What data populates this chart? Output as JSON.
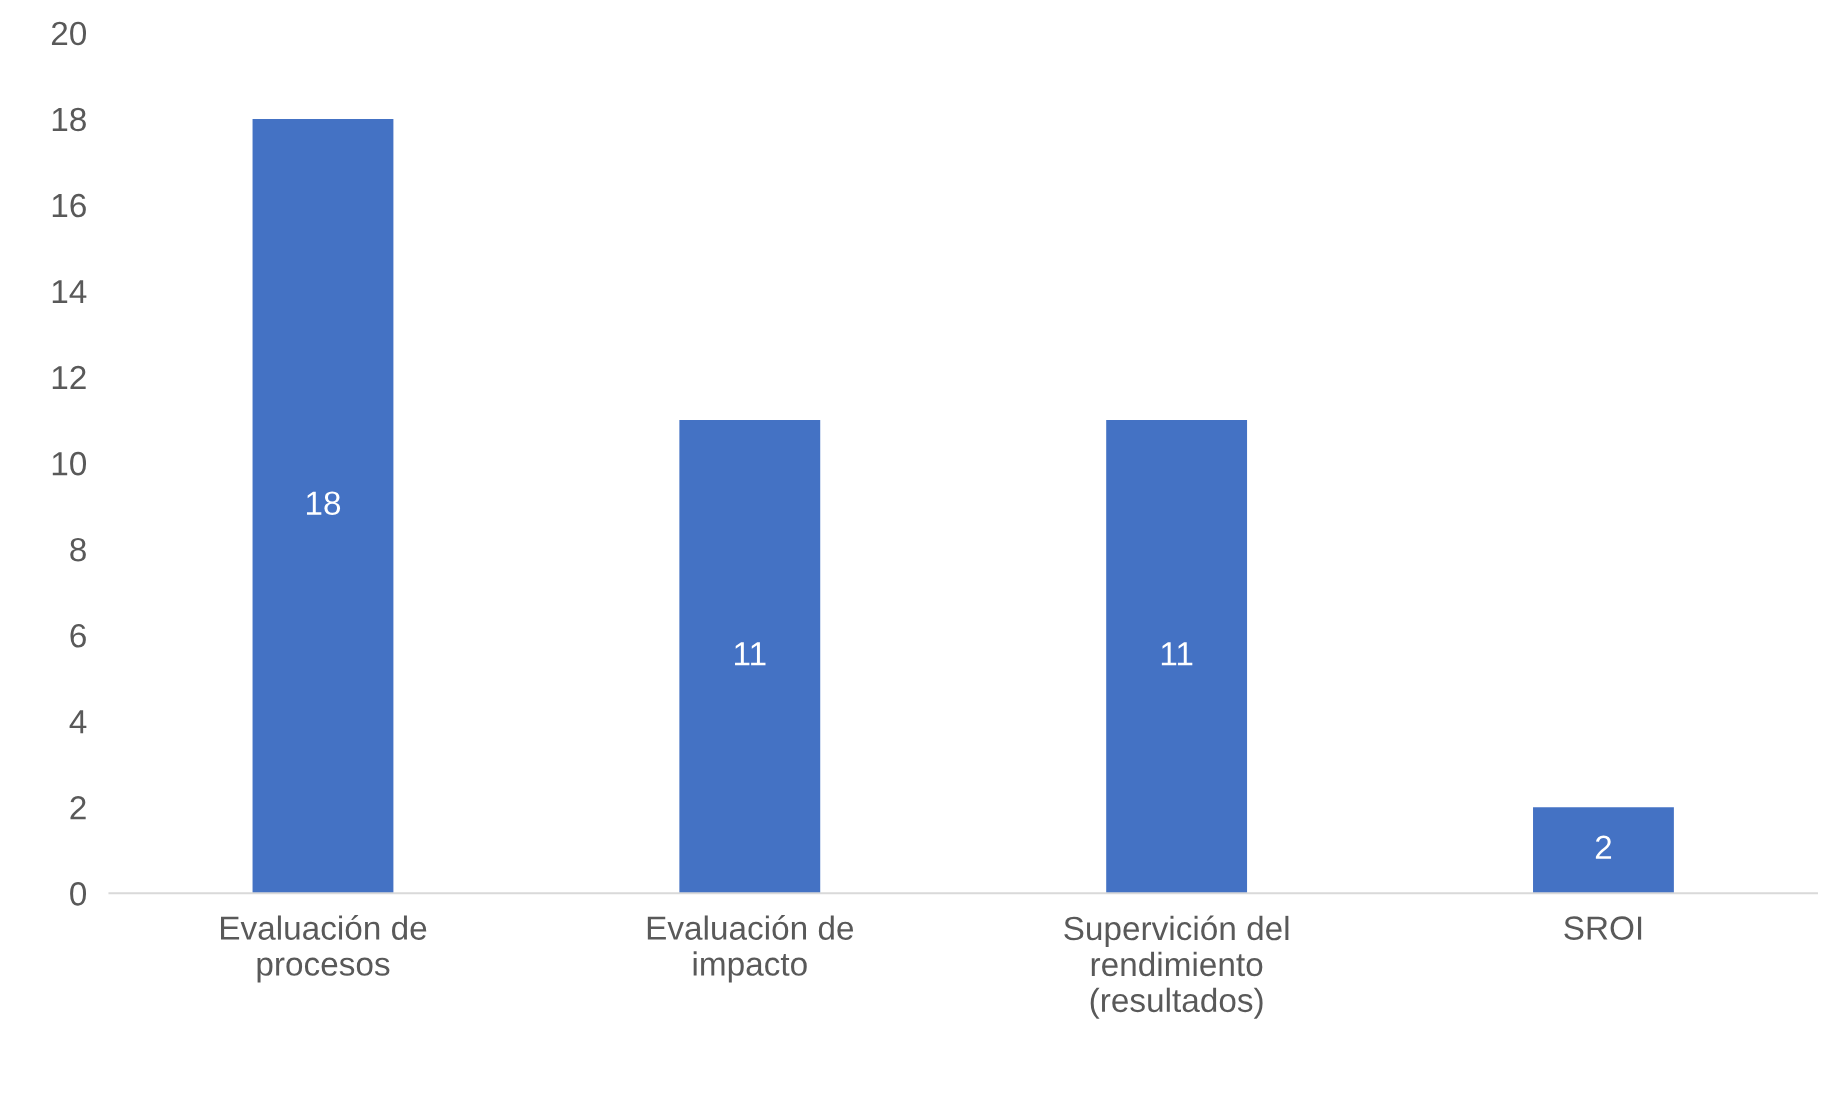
{
  "chart_data": {
    "type": "bar",
    "categories": [
      "Evaluación de\nprocesos",
      "Evaluación de\nimpacto",
      "Supervición del\nrendimiento\n(resultados)",
      "SROI"
    ],
    "values": [
      18,
      11,
      11,
      2
    ],
    "color": "#4472c4",
    "ylim": [
      0,
      20
    ],
    "yticks": [
      0,
      2,
      4,
      6,
      8,
      10,
      12,
      14,
      16,
      18,
      20
    ],
    "grid": false,
    "legend": false,
    "data_labels": true
  }
}
